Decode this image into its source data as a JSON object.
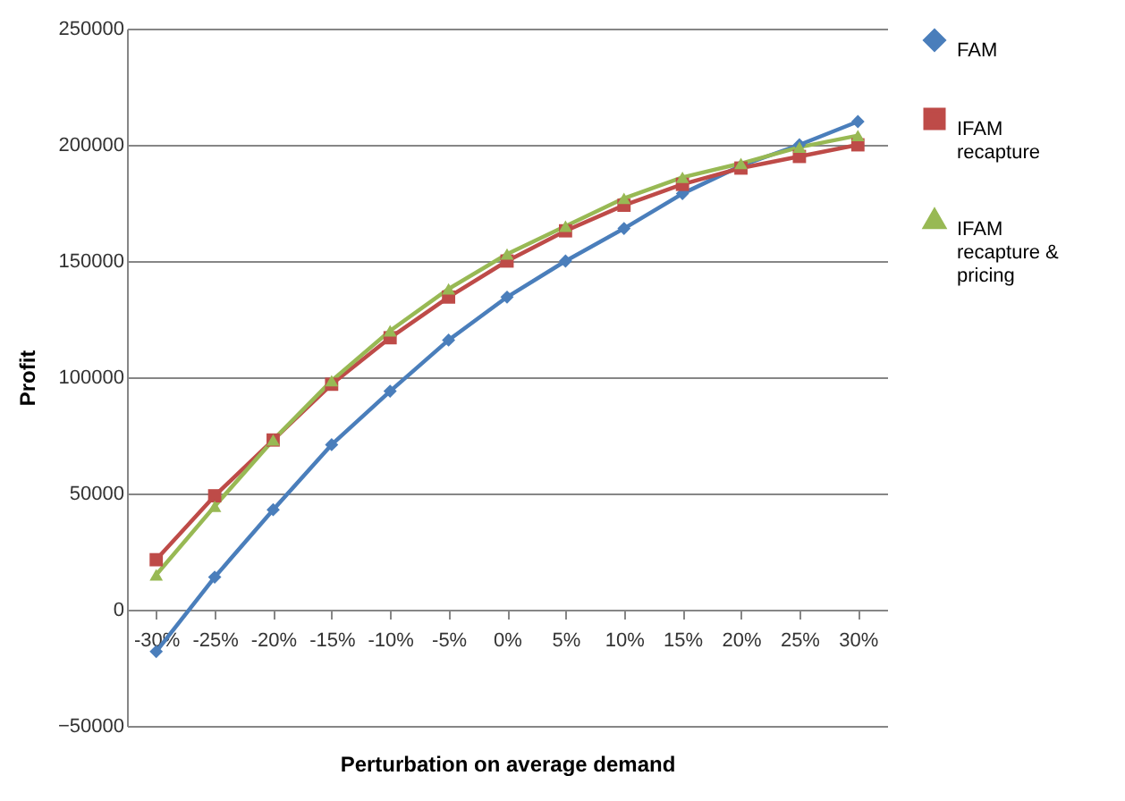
{
  "chart_data": {
    "type": "line",
    "xlabel": "Perturbation on average demand",
    "ylabel": "Profit",
    "categories": [
      "-30%",
      "-25%",
      "-20%",
      "-15%",
      "-10%",
      "-5%",
      "0%",
      "5%",
      "10%",
      "15%",
      "20%",
      "25%",
      "30%"
    ],
    "series": [
      {
        "name": "FAM",
        "color": "#4a7ebb",
        "marker": "diamond",
        "values": [
          -18000,
          14000,
          43000,
          71000,
          94000,
          116000,
          134500,
          150000,
          164000,
          179000,
          191000,
          200000,
          210000
        ]
      },
      {
        "name": "IFAM recapture",
        "color": "#be4b48",
        "marker": "square",
        "values": [
          21500,
          49000,
          73000,
          97000,
          117000,
          134500,
          150000,
          163000,
          174000,
          183000,
          190000,
          195000,
          200000
        ]
      },
      {
        "name": "IFAM recapture & pricing",
        "color": "#98b954",
        "marker": "triangle",
        "values": [
          15000,
          44500,
          73000,
          98500,
          120000,
          138000,
          153000,
          165000,
          177000,
          186000,
          192000,
          199000,
          204000
        ]
      }
    ],
    "ylim": [
      -50000,
      250000
    ],
    "yticks": [
      -50000,
      0,
      50000,
      100000,
      150000,
      200000,
      250000
    ],
    "grid": "y",
    "legend": "right",
    "line_style": "solid"
  }
}
